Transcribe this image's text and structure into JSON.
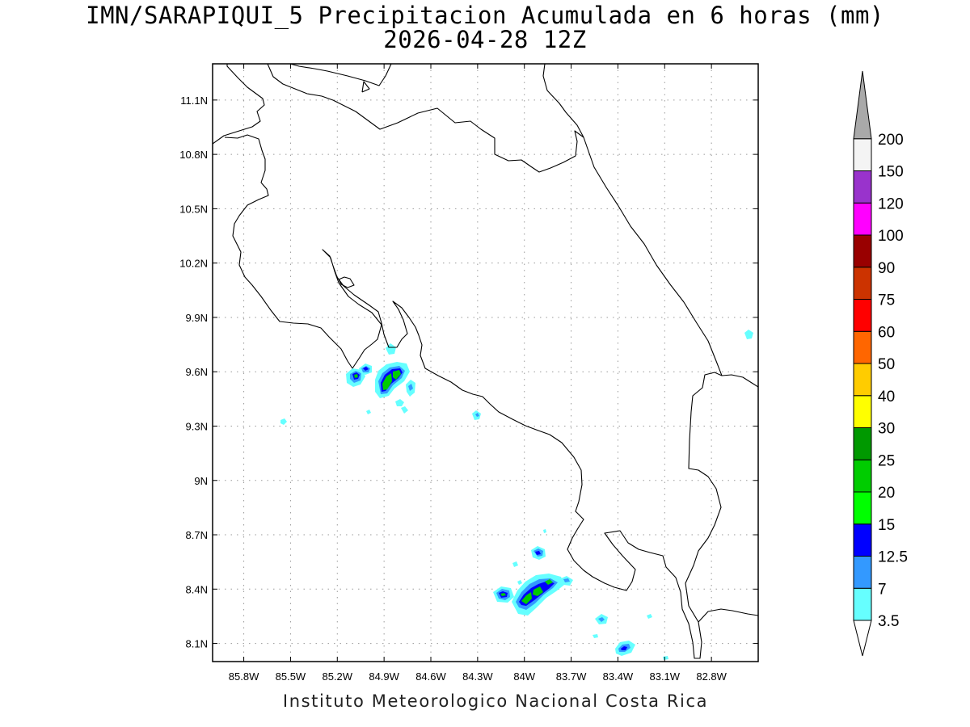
{
  "header": {
    "title": "IMN/SARAPIQUI_5 Precipitacion Acumulada en 6 horas (mm)",
    "subtitle": "2026-04-28 12Z"
  },
  "footer": {
    "text": "Instituto Meteorologico Nacional Costa Rica"
  },
  "map": {
    "lon_range": [
      -86.0,
      -82.5
    ],
    "lat_range": [
      8.0,
      11.3
    ],
    "lon_ticks": [
      {
        "value": -85.8,
        "label": "85.8W"
      },
      {
        "value": -85.5,
        "label": "85.5W"
      },
      {
        "value": -85.2,
        "label": "85.2W"
      },
      {
        "value": -84.9,
        "label": "84.9W"
      },
      {
        "value": -84.6,
        "label": "84.6W"
      },
      {
        "value": -84.3,
        "label": "84.3W"
      },
      {
        "value": -84.0,
        "label": "84W"
      },
      {
        "value": -83.7,
        "label": "83.7W"
      },
      {
        "value": -83.4,
        "label": "83.4W"
      },
      {
        "value": -83.1,
        "label": "83.1W"
      },
      {
        "value": -82.8,
        "label": "82.8W"
      }
    ],
    "lat_ticks": [
      {
        "value": 11.1,
        "label": "11.1N"
      },
      {
        "value": 10.8,
        "label": "10.8N"
      },
      {
        "value": 10.5,
        "label": "10.5N"
      },
      {
        "value": 10.2,
        "label": "10.2N"
      },
      {
        "value": 9.9,
        "label": "9.9N"
      },
      {
        "value": 9.6,
        "label": "9.6N"
      },
      {
        "value": 9.3,
        "label": "9.3N"
      },
      {
        "value": 9.0,
        "label": "9N"
      },
      {
        "value": 8.7,
        "label": "8.7N"
      },
      {
        "value": 8.4,
        "label": "8.4N"
      },
      {
        "value": 8.1,
        "label": "8.1N"
      }
    ],
    "grid": true
  },
  "legend": {
    "levels": [
      {
        "label": "3.5",
        "color": "#66ffff"
      },
      {
        "label": "7",
        "color": "#3399ff"
      },
      {
        "label": "12.5",
        "color": "#0000ff"
      },
      {
        "label": "15",
        "color": "#00ff00"
      },
      {
        "label": "20",
        "color": "#00cc00"
      },
      {
        "label": "25",
        "color": "#009900"
      },
      {
        "label": "30",
        "color": "#ffff00"
      },
      {
        "label": "40",
        "color": "#ffcc00"
      },
      {
        "label": "50",
        "color": "#ff6600"
      },
      {
        "label": "60",
        "color": "#ff0000"
      },
      {
        "label": "75",
        "color": "#cc3300"
      },
      {
        "label": "90",
        "color": "#990000"
      },
      {
        "label": "100",
        "color": "#ff00ff"
      },
      {
        "label": "120",
        "color": "#9933cc"
      },
      {
        "label": "150",
        "color": "#f4f4f4"
      },
      {
        "label": "200",
        "color": "#a9a9a9"
      }
    ]
  }
}
